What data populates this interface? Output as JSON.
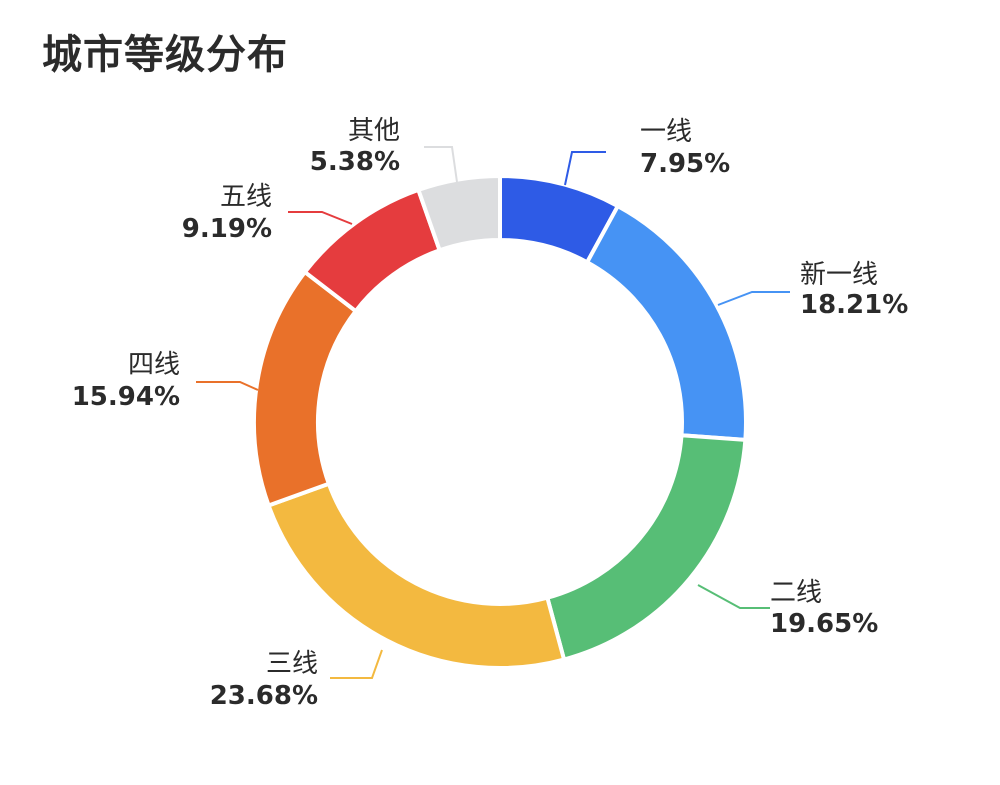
{
  "title": "城市等级分布",
  "chart_data": {
    "type": "pie",
    "donut": true,
    "title": "城市等级分布",
    "slices": [
      {
        "label": "一线",
        "value": 7.95,
        "value_label": "7.95%",
        "color": "#2E5BE6"
      },
      {
        "label": "新一线",
        "value": 18.21,
        "value_label": "18.21%",
        "color": "#4693F4"
      },
      {
        "label": "二线",
        "value": 19.65,
        "value_label": "19.65%",
        "color": "#57BE76"
      },
      {
        "label": "三线",
        "value": 23.68,
        "value_label": "23.68%",
        "color": "#F3B940"
      },
      {
        "label": "四线",
        "value": 15.94,
        "value_label": "15.94%",
        "color": "#E9712A"
      },
      {
        "label": "五线",
        "value": 9.19,
        "value_label": "9.19%",
        "color": "#E53C3E"
      },
      {
        "label": "其他",
        "value": 5.38,
        "value_label": "5.38%",
        "color": "#DCDDDF"
      }
    ],
    "legend": "none"
  }
}
